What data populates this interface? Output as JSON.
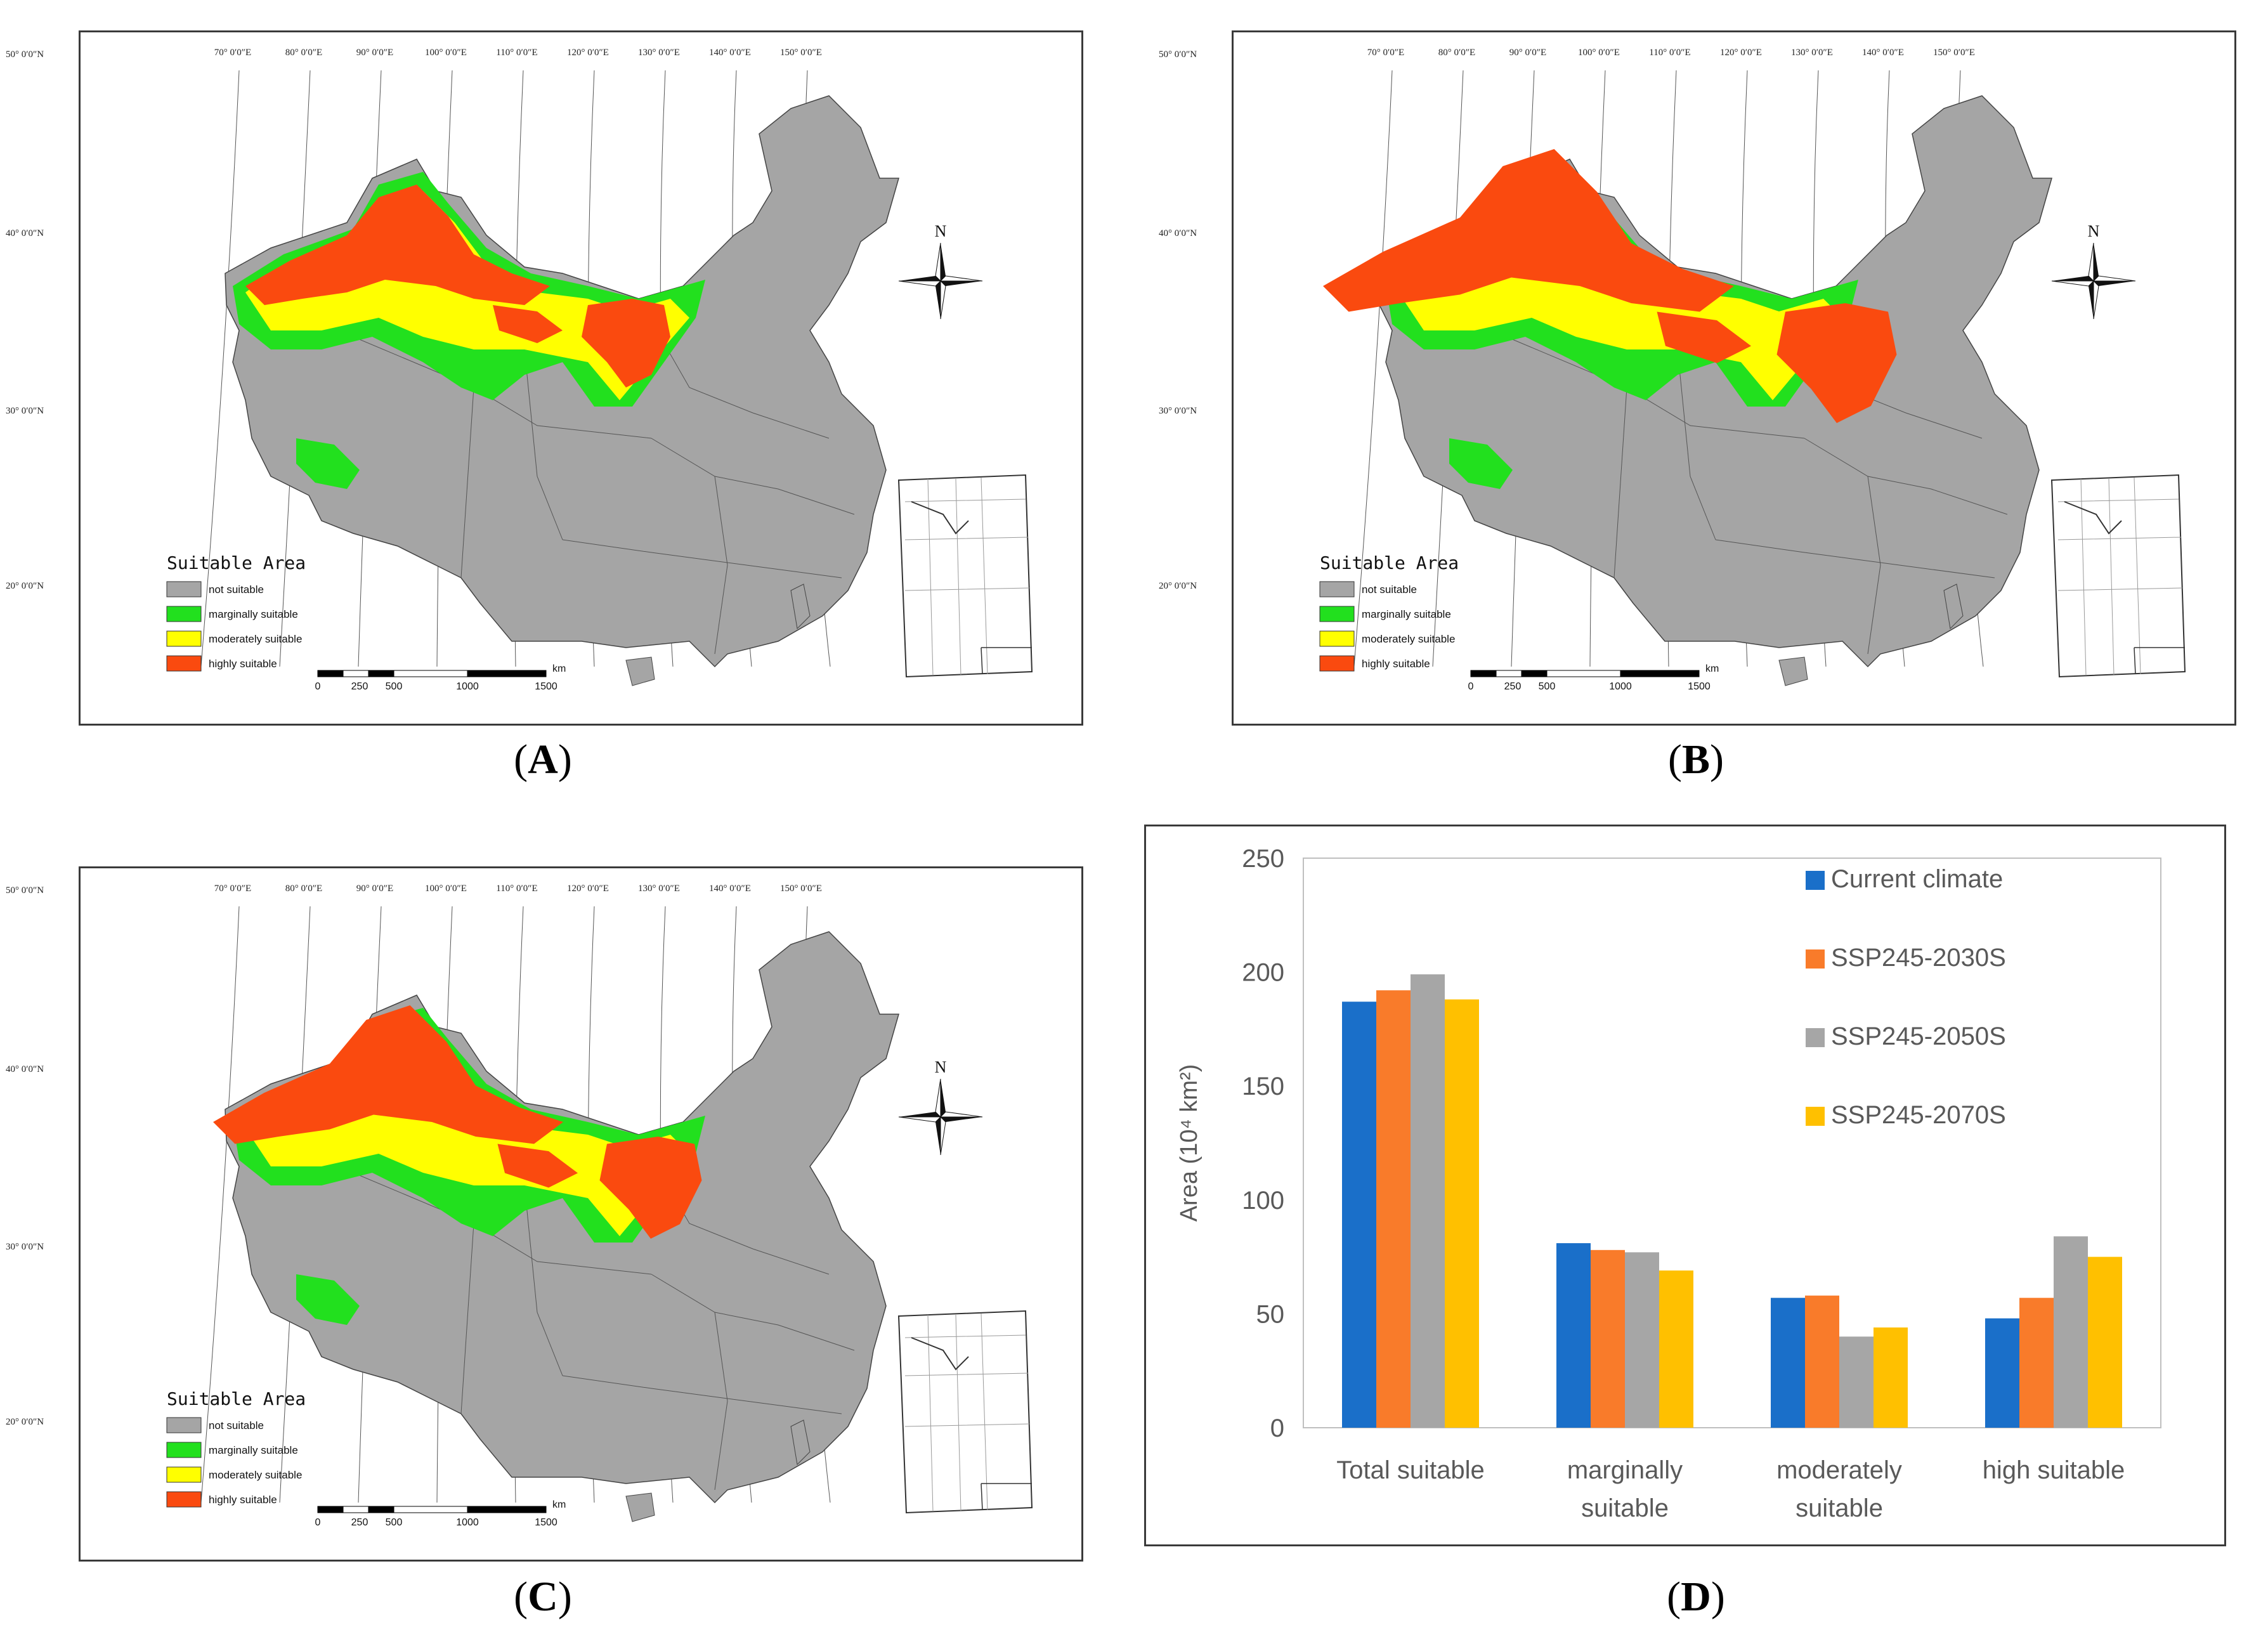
{
  "maps": [
    {
      "id": "A",
      "caption": "A"
    },
    {
      "id": "B",
      "caption": "B"
    },
    {
      "id": "C",
      "caption": "C"
    }
  ],
  "map_labels": {
    "lat_labels": [
      "50° 0′0″N",
      "40° 0′0″N",
      "30° 0′0″N",
      "20° 0′0″N"
    ],
    "lon_labels": [
      "70° 0′0″E",
      "80° 0′0″E",
      "90° 0′0″E",
      "100° 0′0″E",
      "110° 0′0″E",
      "120° 0′0″E",
      "130° 0′0″E",
      "140° 0′0″E",
      "150° 0′0″E"
    ],
    "north": "N",
    "legend_title": "Suitable Area",
    "legend_items": [
      {
        "label": "not suitable",
        "color": "#a5a5a5"
      },
      {
        "label": "marginally suitable",
        "color": "#22e01e"
      },
      {
        "label": "moderately suitable",
        "color": "#ffff00"
      },
      {
        "label": "highly suitable",
        "color": "#fa4a0f"
      }
    ],
    "scale_ticks": [
      "0",
      "250",
      "500",
      "1000",
      "1500"
    ],
    "scale_unit": "km"
  },
  "chart_caption": "D",
  "chart_data": {
    "type": "bar",
    "ylabel": "Area (10⁴ km²)",
    "ylim": [
      0,
      250
    ],
    "yticks": [
      "0",
      "50",
      "100",
      "150",
      "200",
      "250"
    ],
    "categories": [
      {
        "line1": "Total suitable",
        "line2": ""
      },
      {
        "line1": "marginally",
        "line2": "suitable"
      },
      {
        "line1": "moderately",
        "line2": "suitable"
      },
      {
        "line1": "high suitable",
        "line2": ""
      }
    ],
    "series": [
      {
        "name": "Current climate",
        "color": "#1a6fc9",
        "values": [
          187,
          81,
          57,
          48
        ]
      },
      {
        "name": "SSP245-2030S",
        "color": "#f97b2a",
        "values": [
          192,
          78,
          58,
          57
        ]
      },
      {
        "name": "SSP245-2050S",
        "color": "#a6a6a6",
        "values": [
          199,
          77,
          40,
          84
        ]
      },
      {
        "name": "SSP245-2070S",
        "color": "#ffc000",
        "values": [
          188,
          69,
          44,
          75
        ]
      }
    ]
  }
}
